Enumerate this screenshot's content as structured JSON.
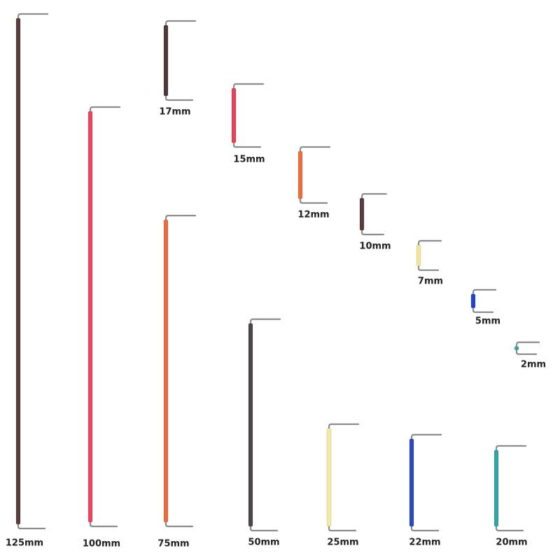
{
  "labels": [
    "125mm",
    "100mm",
    "75mm",
    "50mm",
    "25mm",
    "22mm",
    "20mm",
    "17mm",
    "15mm",
    "12mm",
    "10mm",
    "7mm",
    "5mm",
    "2mm"
  ]
}
